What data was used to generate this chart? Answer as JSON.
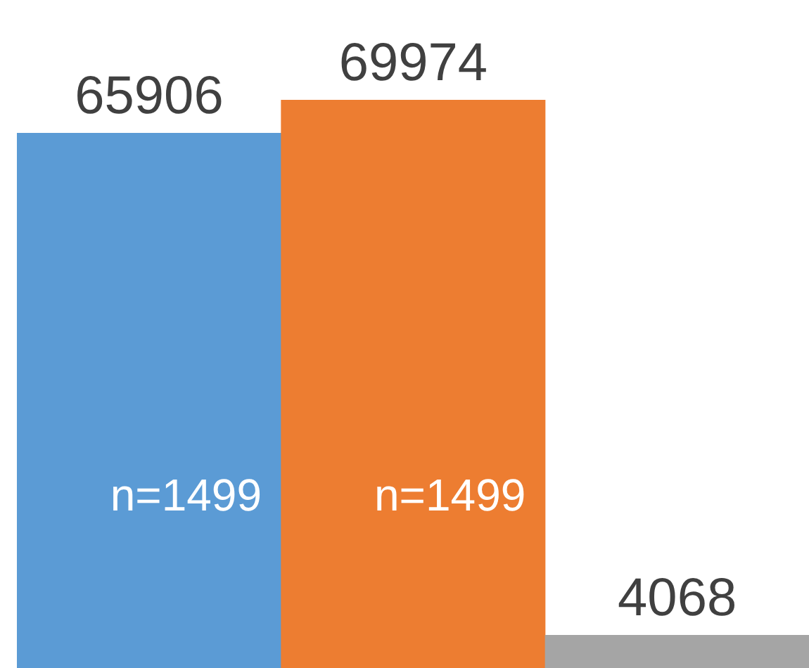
{
  "chart_data": {
    "type": "bar",
    "categories": [
      null,
      null,
      null
    ],
    "values": [
      65906,
      69974,
      4068
    ],
    "colors": [
      "#5b9bd5",
      "#ed7d31",
      "#a5a5a5"
    ],
    "data_labels": true,
    "annotations": [
      "n=1499",
      "n=1499"
    ]
  }
}
